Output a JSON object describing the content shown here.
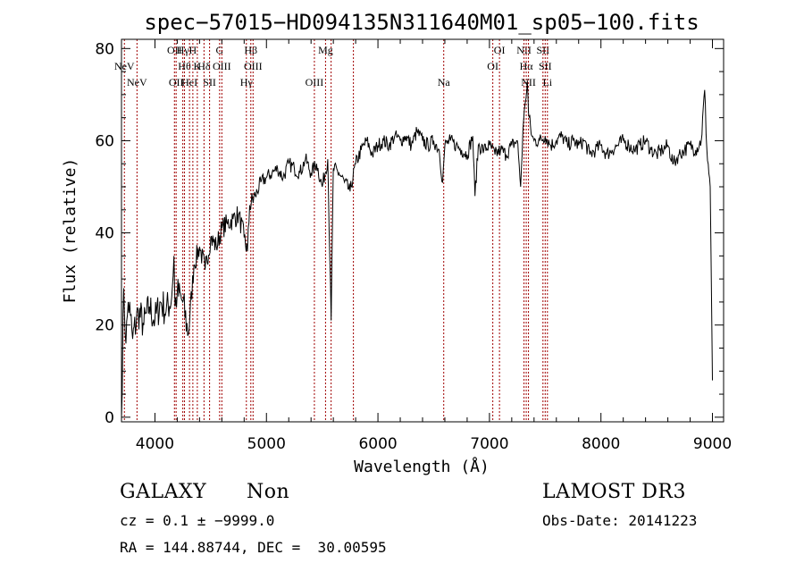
{
  "chart_data": {
    "type": "line",
    "title": "spec−57015−HD094135N311640M01_sp05−100.fits",
    "xlabel": "Wavelength (Å)",
    "ylabel": "Flux (relative)",
    "xlim": [
      3700,
      9100
    ],
    "ylim": [
      -1,
      82
    ],
    "x_ticks": [
      "4000",
      "5000",
      "6000",
      "7000",
      "8000",
      "9000"
    ],
    "y_ticks": [
      "0",
      "20",
      "40",
      "60",
      "80"
    ],
    "grid": false,
    "series": [
      {
        "x": [
          3700,
          3720,
          3740,
          3760,
          3780,
          3800,
          3850,
          3900,
          3950,
          4000,
          4050,
          4100,
          4150,
          4170,
          4180,
          4200,
          4250,
          4300,
          4350,
          4400,
          4450,
          4500,
          4550,
          4600,
          4650,
          4700,
          4750,
          4800,
          4830,
          4850,
          4900,
          4950,
          5000,
          5050,
          5100,
          5150,
          5200,
          5250,
          5300,
          5350,
          5400,
          5450,
          5500,
          5550,
          5580,
          5600,
          5650,
          5700,
          5750,
          5800,
          5850,
          5900,
          5950,
          6000,
          6050,
          6100,
          6150,
          6200,
          6250,
          6300,
          6350,
          6400,
          6450,
          6500,
          6550,
          6580,
          6600,
          6650,
          6700,
          6750,
          6800,
          6850,
          6870,
          6900,
          6950,
          7000,
          7050,
          7100,
          7150,
          7200,
          7250,
          7260,
          7280,
          7300,
          7320,
          7340,
          7350,
          7380,
          7400,
          7450,
          7500,
          7550,
          7600,
          7650,
          7700,
          7750,
          7800,
          7850,
          7900,
          7950,
          8000,
          8050,
          8100,
          8150,
          8200,
          8250,
          8300,
          8350,
          8400,
          8450,
          8500,
          8550,
          8600,
          8650,
          8700,
          8750,
          8800,
          8850,
          8900,
          8930,
          8950,
          8980,
          9000
        ],
        "y": [
          0,
          28,
          16,
          25,
          22,
          17,
          23,
          20,
          24,
          21,
          25,
          23,
          26,
          35,
          24,
          27,
          25,
          18,
          33,
          37,
          32,
          39,
          37,
          41,
          42,
          43,
          44,
          39,
          36,
          46,
          48,
          51,
          52,
          53,
          54,
          52,
          55,
          54,
          53,
          56,
          53,
          55,
          50,
          56,
          21,
          54,
          53,
          51,
          49,
          55,
          58,
          60,
          57,
          59,
          60,
          59,
          61,
          60,
          61,
          59,
          62,
          60,
          59,
          60,
          58,
          51,
          59,
          60,
          59,
          58,
          57,
          61,
          48,
          59,
          58,
          59,
          57,
          58,
          57,
          59,
          60,
          57,
          50,
          62,
          68,
          73,
          66,
          61,
          60,
          60,
          61,
          59,
          60,
          61,
          59,
          60,
          59,
          60,
          57,
          58,
          59,
          57,
          58,
          59,
          60,
          59,
          58,
          59,
          60,
          58,
          57,
          58,
          59,
          55,
          57,
          58,
          59,
          58,
          60,
          71,
          58,
          50,
          8
        ]
      }
    ],
    "lines": [
      {
        "w": 3726,
        "row": 1,
        "label": "NeV"
      },
      {
        "w": 3839,
        "row": 2,
        "label": "NeV"
      },
      {
        "w": 4175,
        "row": 0,
        "label": "OII"
      },
      {
        "w": 4190,
        "row": 2,
        "label": "OII"
      },
      {
        "w": 4250,
        "row": 0,
        "label": "Hγ"
      },
      {
        "w": 4265,
        "row": 1,
        "label": "Hθ"
      },
      {
        "w": 4310,
        "row": 2,
        "label": "HeI"
      },
      {
        "w": 4340,
        "row": 0,
        "label": "H"
      },
      {
        "w": 4380,
        "row": 1,
        "label": "K"
      },
      {
        "w": 4440,
        "row": 1,
        "label": "Hδ"
      },
      {
        "w": 4490,
        "row": 2,
        "label": "SII"
      },
      {
        "w": 4580,
        "row": 0,
        "label": "G"
      },
      {
        "w": 4600,
        "row": 1,
        "label": "OIII"
      },
      {
        "w": 4820,
        "row": 2,
        "label": "Hγ"
      },
      {
        "w": 4860,
        "row": 0,
        "label": "Hβ"
      },
      {
        "w": 4880,
        "row": 1,
        "label": "OIII"
      },
      {
        "w": 5430,
        "row": 2,
        "label": "OIII"
      },
      {
        "w": 5530,
        "row": 0,
        "label": "Mg"
      },
      {
        "w": 5580,
        "row": 0,
        "label": ""
      },
      {
        "w": 5780,
        "row": 0,
        "label": ""
      },
      {
        "w": 6590,
        "row": 2,
        "label": "Na"
      },
      {
        "w": 7030,
        "row": 1,
        "label": "OI"
      },
      {
        "w": 7090,
        "row": 0,
        "label": "OI"
      },
      {
        "w": 7310,
        "row": 0,
        "label": "NII"
      },
      {
        "w": 7330,
        "row": 1,
        "label": "Hα"
      },
      {
        "w": 7350,
        "row": 2,
        "label": "NII"
      },
      {
        "w": 7480,
        "row": 0,
        "label": "SII"
      },
      {
        "w": 7500,
        "row": 1,
        "label": "SII"
      },
      {
        "w": 7520,
        "row": 2,
        "label": "Li"
      }
    ]
  },
  "info": {
    "class": "GALAXY",
    "subclass": "Non",
    "survey": "LAMOST DR3",
    "cz": "cz = 0.1 ± −9999.0",
    "obs_date": "Obs-Date: 20141223",
    "radec": "RA = 144.88744, DEC =  30.00595"
  }
}
